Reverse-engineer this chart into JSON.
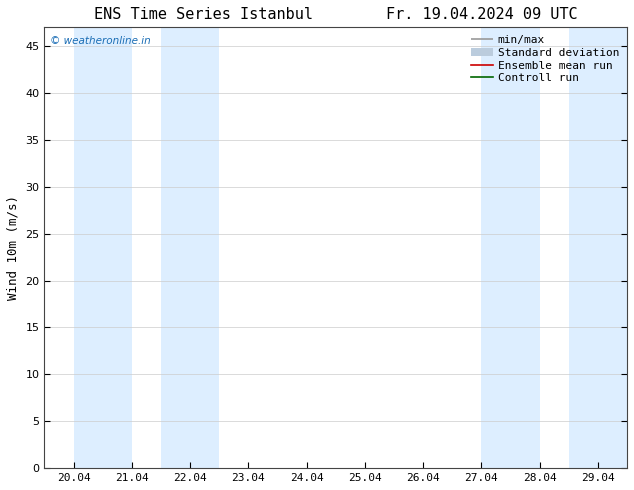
{
  "title_left": "ENS Time Series Istanbul",
  "title_right": "Fr. 19.04.2024 09 UTC",
  "ylabel": "Wind 10m (m/s)",
  "ylim": [
    0,
    47
  ],
  "yticks": [
    0,
    5,
    10,
    15,
    20,
    25,
    30,
    35,
    40,
    45
  ],
  "xtick_labels": [
    "20.04",
    "21.04",
    "22.04",
    "23.04",
    "24.04",
    "25.04",
    "26.04",
    "27.04",
    "28.04",
    "29.04"
  ],
  "xtick_positions": [
    0,
    1,
    2,
    3,
    4,
    5,
    6,
    7,
    8,
    9
  ],
  "xlim": [
    -0.5,
    9.5
  ],
  "shade_bands": [
    [
      0.0,
      1.0
    ],
    [
      1.5,
      2.5
    ],
    [
      7.0,
      8.0
    ],
    [
      8.5,
      9.5
    ]
  ],
  "shade_color": "#ddeeff",
  "background_color": "#ffffff",
  "watermark_text": "© weatheronline.in",
  "watermark_color": "#1a6db5",
  "minmax_color": "#999999",
  "stddev_color": "#bbccdd",
  "ensemble_color": "#cc0000",
  "control_color": "#006600",
  "title_fontsize": 11,
  "axis_fontsize": 8,
  "ylabel_fontsize": 9,
  "legend_fontsize": 8
}
